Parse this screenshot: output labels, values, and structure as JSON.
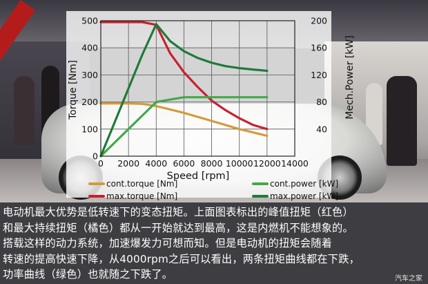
{
  "chart_data": {
    "type": "line",
    "xlabel": "Speed [rpm]",
    "ylabel_left": "Torque [Nm]",
    "ylabel_right": "Mech.Power [kW]",
    "xlim": [
      0,
      14000
    ],
    "ylim_left": [
      0,
      500
    ],
    "ylim_right": [
      0,
      200
    ],
    "x_ticks": [
      0,
      2000,
      4000,
      6000,
      8000,
      10000,
      12000,
      14000
    ],
    "y_left_ticks": [
      0,
      100,
      200,
      300,
      400,
      500
    ],
    "y_right_ticks": [
      40,
      80,
      120,
      160,
      200
    ],
    "grid": true,
    "series": [
      {
        "name": "cont.torque [Nm]",
        "axis": "left",
        "color": "#d49a3a",
        "x": [
          0,
          1000,
          2000,
          3000,
          4000,
          6000,
          8000,
          10000,
          12000
        ],
        "y": [
          195,
          195,
          195,
          193,
          185,
          160,
          130,
          100,
          75
        ]
      },
      {
        "name": "max.torque [Nm]",
        "axis": "left",
        "color": "#c8202e",
        "x": [
          0,
          1000,
          2000,
          3000,
          4000,
          5000,
          6000,
          7000,
          8000,
          9000,
          10000,
          11000,
          12000
        ],
        "y": [
          495,
          495,
          495,
          495,
          485,
          380,
          310,
          255,
          205,
          170,
          140,
          115,
          100
        ]
      },
      {
        "name": "cont.power [kW]",
        "axis": "right",
        "color": "#44a84a",
        "x": [
          0,
          2000,
          4000,
          6000,
          8000,
          10000,
          12000
        ],
        "y": [
          0,
          40,
          80,
          87,
          87,
          87,
          87
        ]
      },
      {
        "name": "max.power [kW]",
        "axis": "right",
        "color": "#1f7a3a",
        "x": [
          0,
          1000,
          2000,
          3000,
          4000,
          5000,
          6000,
          7000,
          8000,
          9000,
          10000,
          11000,
          12000
        ],
        "y": [
          0,
          50,
          100,
          150,
          195,
          170,
          155,
          145,
          138,
          133,
          130,
          128,
          126
        ]
      }
    ],
    "legend_placement": "bottom"
  },
  "caption": {
    "lines": [
      "电动机最大优势是低转速下的变态扭矩。上面图表标出的峰值扭矩（红色）",
      "和最大持续扭矩（橘色）都从一开始就达到最高，这是内燃机不能想象的。",
      "搭载这样的动力系统，加速爆发力可想而知。但是电动机的扭矩会随着",
      "转速的提高快速下降，从4000rpm之后可以看出，两条扭矩曲线都在下跌，",
      "功率曲线（绿色）也就随之下跌了。"
    ]
  },
  "watermark": "汽车之家"
}
